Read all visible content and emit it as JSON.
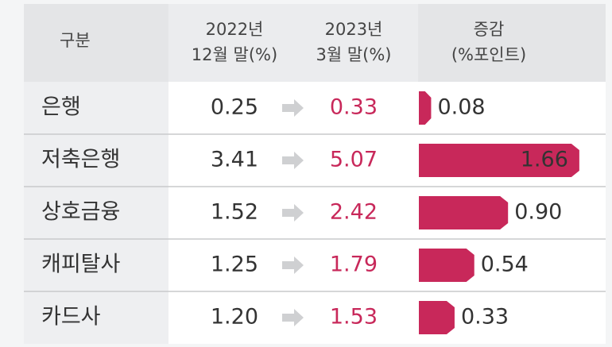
{
  "chart_data": {
    "type": "bar",
    "header": {
      "category": "구분",
      "before": [
        "2022년",
        "12월 말(%)"
      ],
      "after": [
        "2023년",
        "3월 말(%)"
      ],
      "change": [
        "증감",
        "(%포인트)"
      ]
    },
    "categories": [
      "은행",
      "저축은행",
      "상호금융",
      "캐피탈사",
      "카드사"
    ],
    "before": [
      "0.25",
      "3.41",
      "1.52",
      "1.25",
      "1.20"
    ],
    "after": [
      "0.33",
      "5.07",
      "2.42",
      "1.79",
      "1.53"
    ],
    "values": [
      0.08,
      1.66,
      0.9,
      0.54,
      0.33
    ],
    "value_labels": [
      "0.08",
      "1.66",
      "0.90",
      "0.54",
      "0.33"
    ],
    "color": "#c8285a"
  }
}
